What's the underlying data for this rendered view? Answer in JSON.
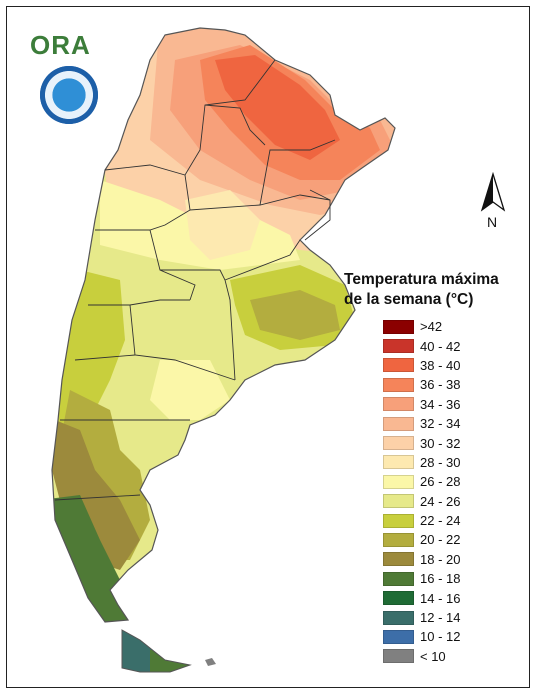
{
  "header": {
    "logo_text": "ORA",
    "seal_icon": "institution-seal-icon"
  },
  "map": {
    "north_arrow": {
      "icon": "north-arrow-icon",
      "label": "N"
    },
    "colors": {
      "country_outline": "#555555",
      "province_line": "#333333",
      "background": "#ffffff"
    }
  },
  "legend": {
    "title_line1": "Temperatura máxima",
    "title_line2": "de la semana (°C)",
    "items": [
      {
        "label": ">42",
        "color": "#8b0000"
      },
      {
        "label": "40 - 42",
        "color": "#c9342a"
      },
      {
        "label": "38 - 40",
        "color": "#ef6540"
      },
      {
        "label": "36 - 38",
        "color": "#f5845a"
      },
      {
        "label": "34 - 36",
        "color": "#f7a07a"
      },
      {
        "label": "32 - 34",
        "color": "#f9b892"
      },
      {
        "label": "30 - 32",
        "color": "#fcd1a8"
      },
      {
        "label": "28 - 30",
        "color": "#fde9b0"
      },
      {
        "label": "26 - 28",
        "color": "#fbf7a8"
      },
      {
        "label": "24 - 26",
        "color": "#e6e98a"
      },
      {
        "label": "22 - 24",
        "color": "#c8cf3d"
      },
      {
        "label": "20 - 22",
        "color": "#b3ad3f"
      },
      {
        "label": "18 - 20",
        "color": "#9c8a3c"
      },
      {
        "label": "16 - 18",
        "color": "#4f7a36"
      },
      {
        "label": "14 - 16",
        "color": "#1f6b35"
      },
      {
        "label": "12 - 14",
        "color": "#3a6e6a"
      },
      {
        "label": "10 - 12",
        "color": "#3d6ea8"
      },
      {
        "label": "< 10",
        "color": "#808080"
      }
    ]
  }
}
